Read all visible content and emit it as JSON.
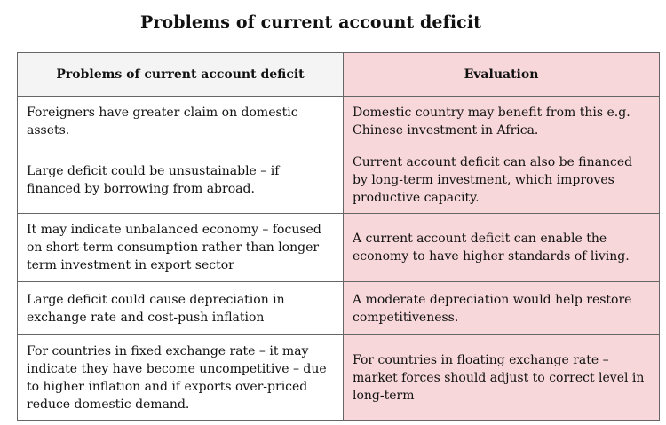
{
  "title": "Problems of current account deficit",
  "table": {
    "headers": {
      "problem": "Problems of current account deficit",
      "evaluation": "Evaluation"
    },
    "rows": [
      {
        "problem": "Foreigners have greater claim on domestic assets.",
        "evaluation": "Domestic country may benefit from this e.g. Chinese investment in Africa."
      },
      {
        "problem": "Large deficit could be unsustainable – if financed by borrowing from abroad.",
        "evaluation": "Current account deficit can also be financed by long-term investment, which improves productive capacity."
      },
      {
        "problem": "It may indicate unbalanced economy – focused on short-term consumption rather than longer term investment in export sector",
        "evaluation": "A current account deficit can enable the economy to have higher standards of living."
      },
      {
        "problem": "Large deficit could cause depreciation in exchange rate and cost-push inflation",
        "evaluation": "A moderate depreciation would help restore competitiveness."
      },
      {
        "problem": "For countries in fixed exchange rate – it may indicate they have become uncompetitive – due to higher inflation and if exports over-priced reduce domestic demand.",
        "evaluation": "For countries in floating exchange rate – market forces should adjust to correct level in long-term"
      }
    ]
  },
  "colors": {
    "evaluation_background": "#f7d7d9",
    "header_background": "#f4f4f4",
    "border": "#666666"
  }
}
